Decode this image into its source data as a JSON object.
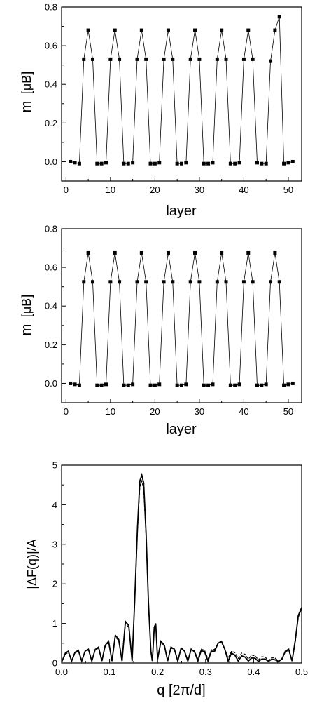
{
  "chart_data": [
    {
      "type": "scatter",
      "xlabel": "layer",
      "ylabel": "m",
      "ylabel_unit": "[μB]",
      "xlim": [
        -1,
        53
      ],
      "ylim": [
        -0.1,
        0.8
      ],
      "xticks": [
        0,
        10,
        20,
        30,
        40,
        50
      ],
      "yticks": [
        0.0,
        0.2,
        0.4,
        0.6,
        0.8
      ],
      "tick_labels_x": [
        "0",
        "10",
        "20",
        "30",
        "40",
        "50"
      ],
      "tick_labels_y": [
        "0.0",
        "0.2",
        "0.4",
        "0.6",
        "0.8"
      ],
      "series": [
        {
          "x": [
            1,
            2,
            3,
            4,
            5,
            6,
            7,
            8,
            9,
            10,
            11,
            12,
            13,
            14,
            15,
            16,
            17,
            18,
            19,
            20,
            21,
            22,
            23,
            24,
            25,
            26,
            27,
            28,
            29,
            30,
            31,
            32,
            33,
            34,
            35,
            36,
            37,
            38,
            39,
            40,
            41,
            42,
            43,
            44,
            45,
            46,
            47,
            48,
            49,
            50,
            51
          ],
          "y": [
            0.0,
            -0.005,
            -0.01,
            0.53,
            0.68,
            0.53,
            -0.01,
            -0.01,
            -0.005,
            0.53,
            0.68,
            0.53,
            -0.01,
            -0.01,
            -0.005,
            0.53,
            0.68,
            0.53,
            -0.01,
            -0.01,
            -0.005,
            0.53,
            0.68,
            0.53,
            -0.01,
            -0.01,
            -0.005,
            0.53,
            0.68,
            0.53,
            -0.01,
            -0.01,
            -0.005,
            0.53,
            0.68,
            0.53,
            -0.01,
            -0.01,
            -0.005,
            0.53,
            0.68,
            0.53,
            -0.005,
            -0.01,
            -0.01,
            0.52,
            0.68,
            0.75,
            -0.01,
            -0.005,
            0.0
          ]
        }
      ]
    },
    {
      "type": "scatter",
      "xlabel": "layer",
      "ylabel": "m",
      "ylabel_unit": "[μB]",
      "xlim": [
        -1,
        53
      ],
      "ylim": [
        -0.1,
        0.8
      ],
      "xticks": [
        0,
        10,
        20,
        30,
        40,
        50
      ],
      "yticks": [
        0.0,
        0.2,
        0.4,
        0.6,
        0.8
      ],
      "tick_labels_x": [
        "0",
        "10",
        "20",
        "30",
        "40",
        "50"
      ],
      "tick_labels_y": [
        "0.0",
        "0.2",
        "0.4",
        "0.6",
        "0.8"
      ],
      "series": [
        {
          "x": [
            1,
            2,
            3,
            4,
            5,
            6,
            7,
            8,
            9,
            10,
            11,
            12,
            13,
            14,
            15,
            16,
            17,
            18,
            19,
            20,
            21,
            22,
            23,
            24,
            25,
            26,
            27,
            28,
            29,
            30,
            31,
            32,
            33,
            34,
            35,
            36,
            37,
            38,
            39,
            40,
            41,
            42,
            43,
            44,
            45,
            46,
            47,
            48,
            49,
            50,
            51
          ],
          "y": [
            0.0,
            -0.005,
            -0.01,
            0.525,
            0.675,
            0.525,
            -0.01,
            -0.01,
            -0.005,
            0.525,
            0.675,
            0.525,
            -0.01,
            -0.01,
            -0.005,
            0.525,
            0.675,
            0.525,
            -0.01,
            -0.01,
            -0.005,
            0.525,
            0.675,
            0.525,
            -0.01,
            -0.01,
            -0.005,
            0.525,
            0.675,
            0.525,
            -0.01,
            -0.01,
            -0.005,
            0.525,
            0.675,
            0.525,
            -0.01,
            -0.01,
            -0.005,
            0.525,
            0.675,
            0.525,
            -0.01,
            -0.01,
            -0.005,
            0.525,
            0.675,
            0.525,
            -0.01,
            -0.005,
            0.0
          ]
        }
      ]
    },
    {
      "type": "line",
      "xlabel": "q [2π/d]",
      "ylabel": "|ΔF(q)|/A",
      "xlim": [
        0.0,
        0.5
      ],
      "ylim": [
        0,
        5
      ],
      "xticks": [
        0.0,
        0.1,
        0.2,
        0.3,
        0.4,
        0.5
      ],
      "yticks": [
        0,
        1,
        2,
        3,
        4,
        5
      ],
      "tick_labels_x": [
        "0.0",
        "0.1",
        "0.2",
        "0.3",
        "0.4",
        "0.5"
      ],
      "tick_labels_y": [
        "0",
        "1",
        "2",
        "3",
        "4",
        "5"
      ],
      "series": [
        {
          "style": "solid",
          "x": [
            0.0,
            0.008,
            0.014,
            0.021,
            0.028,
            0.035,
            0.042,
            0.049,
            0.056,
            0.063,
            0.07,
            0.077,
            0.084,
            0.091,
            0.098,
            0.105,
            0.112,
            0.119,
            0.126,
            0.133,
            0.14,
            0.147,
            0.152,
            0.158,
            0.163,
            0.167,
            0.171,
            0.176,
            0.181,
            0.186,
            0.189,
            0.193,
            0.196,
            0.2,
            0.207,
            0.214,
            0.221,
            0.228,
            0.235,
            0.242,
            0.249,
            0.256,
            0.263,
            0.27,
            0.277,
            0.284,
            0.291,
            0.298,
            0.305,
            0.312,
            0.319,
            0.326,
            0.333,
            0.34,
            0.347,
            0.354,
            0.361,
            0.368,
            0.375,
            0.382,
            0.389,
            0.396,
            0.403,
            0.41,
            0.417,
            0.424,
            0.431,
            0.438,
            0.445,
            0.452,
            0.459,
            0.466,
            0.473,
            0.48,
            0.487,
            0.493,
            0.5
          ],
          "y": [
            0.02,
            0.25,
            0.3,
            0.05,
            0.27,
            0.32,
            0.05,
            0.3,
            0.35,
            0.05,
            0.34,
            0.4,
            0.05,
            0.45,
            0.55,
            0.05,
            0.7,
            0.6,
            0.05,
            1.05,
            0.95,
            0.05,
            1.5,
            3.4,
            4.6,
            4.75,
            4.55,
            3.3,
            1.5,
            0.3,
            0.05,
            0.9,
            1.0,
            0.1,
            0.55,
            0.45,
            0.05,
            0.4,
            0.35,
            0.05,
            0.38,
            0.3,
            0.05,
            0.35,
            0.28,
            0.05,
            0.32,
            0.28,
            0.05,
            0.3,
            0.3,
            0.5,
            0.55,
            0.35,
            0.05,
            0.25,
            0.2,
            0.05,
            0.18,
            0.15,
            0.05,
            0.13,
            0.12,
            0.04,
            0.1,
            0.1,
            0.04,
            0.1,
            0.08,
            0.04,
            0.1,
            0.3,
            0.35,
            0.05,
            0.6,
            1.2,
            1.4
          ]
        },
        {
          "style": "dashed",
          "x": [
            0.0,
            0.008,
            0.014,
            0.021,
            0.028,
            0.035,
            0.042,
            0.049,
            0.056,
            0.063,
            0.07,
            0.077,
            0.084,
            0.091,
            0.098,
            0.105,
            0.112,
            0.119,
            0.126,
            0.133,
            0.14,
            0.147,
            0.152,
            0.158,
            0.163,
            0.167,
            0.171,
            0.176,
            0.181,
            0.186,
            0.189,
            0.193,
            0.196,
            0.2,
            0.207,
            0.214,
            0.221,
            0.228,
            0.235,
            0.242,
            0.249,
            0.256,
            0.263,
            0.27,
            0.277,
            0.284,
            0.291,
            0.298,
            0.305,
            0.312,
            0.319,
            0.326,
            0.333,
            0.34,
            0.347,
            0.354,
            0.361,
            0.368,
            0.375,
            0.382,
            0.389,
            0.396,
            0.403,
            0.41,
            0.417,
            0.424,
            0.431,
            0.438,
            0.445,
            0.452,
            0.459,
            0.466,
            0.473,
            0.48,
            0.487,
            0.493,
            0.5
          ],
          "y": [
            0.02,
            0.22,
            0.27,
            0.06,
            0.25,
            0.3,
            0.06,
            0.28,
            0.33,
            0.06,
            0.32,
            0.38,
            0.06,
            0.42,
            0.52,
            0.06,
            0.66,
            0.57,
            0.06,
            1.0,
            0.9,
            0.06,
            1.45,
            3.3,
            4.45,
            4.6,
            4.4,
            3.2,
            1.45,
            0.32,
            0.06,
            0.86,
            0.96,
            0.12,
            0.52,
            0.43,
            0.06,
            0.38,
            0.33,
            0.06,
            0.36,
            0.3,
            0.08,
            0.35,
            0.3,
            0.1,
            0.35,
            0.32,
            0.1,
            0.33,
            0.35,
            0.5,
            0.52,
            0.36,
            0.12,
            0.3,
            0.26,
            0.12,
            0.25,
            0.22,
            0.1,
            0.2,
            0.18,
            0.08,
            0.16,
            0.15,
            0.06,
            0.14,
            0.12,
            0.05,
            0.12,
            0.28,
            0.32,
            0.05,
            0.55,
            1.15,
            1.38
          ]
        }
      ]
    }
  ]
}
